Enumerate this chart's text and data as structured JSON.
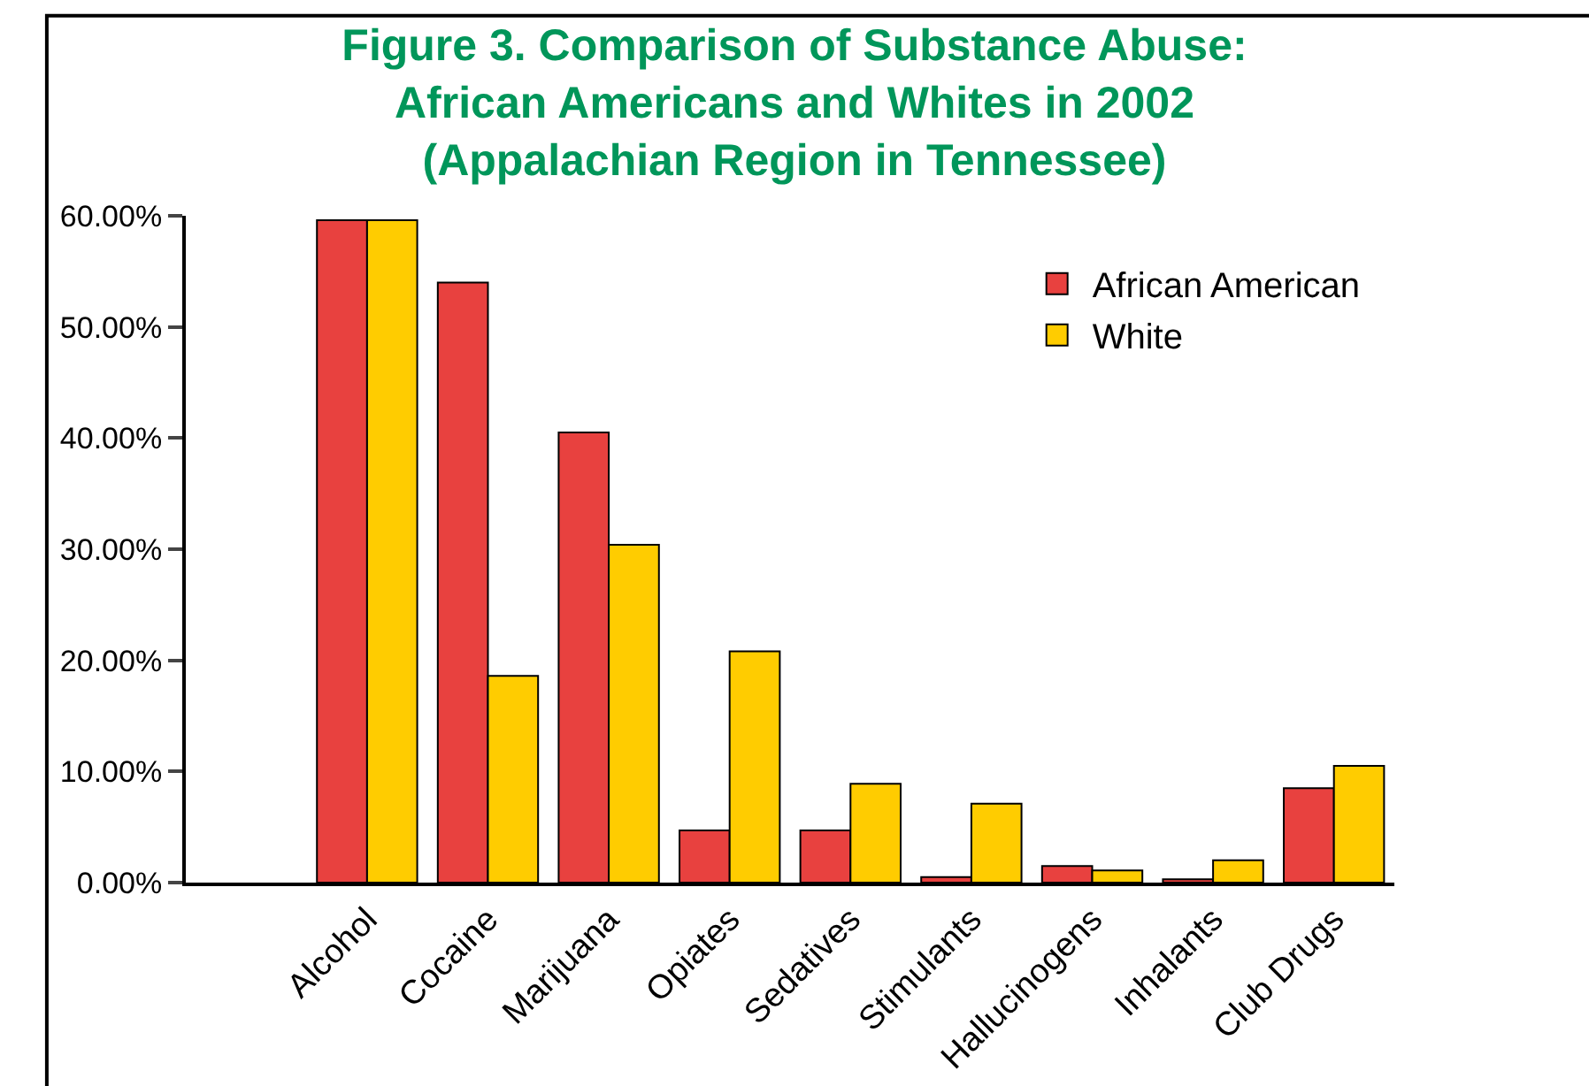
{
  "chart_data": {
    "type": "bar",
    "title": "Figure 3. Comparison of Substance Abuse:\nAfrican Americans and Whites in 2002\n(Appalachian Region in Tennessee)",
    "categories": [
      "Alcohol",
      "Cocaine",
      "Marijuana",
      "Opiates",
      "Sedatives",
      "Stimulants",
      "Hallucinogens",
      "Inhalants",
      "Club Drugs"
    ],
    "series": [
      {
        "name": "African American",
        "color": "#e8413f",
        "values": [
          59.6,
          54.0,
          40.5,
          4.7,
          4.7,
          0.5,
          1.5,
          0.3,
          8.5
        ]
      },
      {
        "name": "White",
        "color": "#ffcc00",
        "values": [
          59.6,
          18.6,
          30.4,
          20.8,
          8.9,
          7.1,
          1.1,
          2.0,
          10.5
        ]
      }
    ],
    "ylim": [
      0,
      60
    ],
    "yticks": [
      {
        "value": 0,
        "label": "0.00%"
      },
      {
        "value": 10,
        "label": "10.00%"
      },
      {
        "value": 20,
        "label": "20.00%"
      },
      {
        "value": 30,
        "label": "30.00%"
      },
      {
        "value": 40,
        "label": "40.00%"
      },
      {
        "value": 50,
        "label": "50.00%"
      },
      {
        "value": 60,
        "label": "60.00%"
      }
    ],
    "legend": "top right"
  }
}
